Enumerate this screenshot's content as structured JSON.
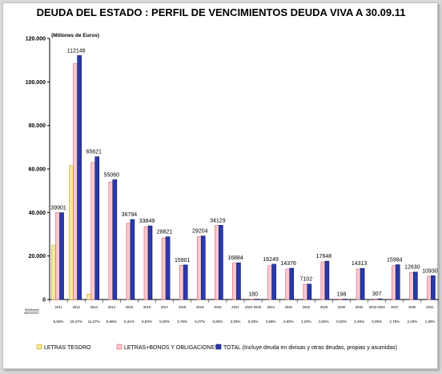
{
  "chart_data": {
    "type": "bar",
    "title": "DEUDA DEL ESTADO : PERFIL DE VENCIMIENTOS DEUDA VIVA A 30.09.11",
    "ylabel": "(Millones de Euros)",
    "ylim": [
      0,
      120000
    ],
    "yticks": [
      "0",
      "20.000",
      "40.000",
      "60.000",
      "80.000",
      "100.000",
      "120.000"
    ],
    "grid": false,
    "legend_position": "bottom",
    "categories": [
      "2011",
      "2012",
      "2013",
      "2014",
      "2015",
      "2016",
      "2017",
      "2018",
      "2019",
      "2020",
      "2021",
      "2022-2020",
      "2024",
      "2025",
      "2026",
      "2026",
      "2030",
      "2032",
      "2033-2034",
      "2037",
      "2040",
      "2041"
    ],
    "percentages": [
      "6,93%",
      "19,47%",
      "11,37%",
      "9,68%",
      "6,31%",
      "5,83%",
      "5,00%",
      "2,76%",
      "5,07%",
      "5,93%",
      "2,93%",
      "0,03%",
      "2,69%",
      "2,60%",
      "1,23%",
      "3,06%",
      "0,03%",
      "2,48%",
      "0,05%",
      "2,78%",
      "2,19%",
      "1,90%"
    ],
    "series": [
      {
        "name": "LETRAS TESORO",
        "color": "#f5e7a3",
        "edge": "#c8a400",
        "values": [
          25000,
          61500,
          2500,
          0,
          0,
          0,
          0,
          0,
          0,
          0,
          0,
          0,
          0,
          0,
          0,
          0,
          0,
          0,
          0,
          0,
          0,
          0
        ]
      },
      {
        "name": "LETRAS+BONOS Y OBLIGACIONES",
        "color": "#f8c9cf",
        "edge": "#e05a6a",
        "values": [
          39900,
          108500,
          63000,
          54000,
          35000,
          33500,
          28300,
          15700,
          29000,
          34000,
          16700,
          180,
          15500,
          14000,
          7000,
          17300,
          198,
          14000,
          307,
          15500,
          12400,
          10700
        ]
      },
      {
        "name": "TOTAL (Incluye deuda en divisas y otras deudas, propias y asumidas)",
        "color": "#2a3aa8",
        "edge": "#0a146a",
        "values": [
          39901,
          112148,
          65621,
          55060,
          36794,
          33849,
          28821,
          15901,
          29204,
          34129,
          16884,
          180,
          16249,
          14376,
          7102,
          17648,
          198,
          14313,
          307,
          15994,
          12630,
          10930
        ]
      }
    ],
    "data_labels": [
      "39901",
      "112148",
      "65621",
      "55060",
      "36794",
      "33849",
      "28821",
      "15901",
      "29204",
      "34129",
      "16884",
      "180",
      "16249",
      "14376",
      "7102",
      "17648",
      "198",
      "14313",
      "307",
      "15994",
      "12630",
      "10930"
    ],
    "annotation": "Distribución\nPara conocer...",
    "colors": {
      "axis": "#000000",
      "frame_bg": "#ffffff",
      "page_bg": "#d9d9d9"
    }
  }
}
